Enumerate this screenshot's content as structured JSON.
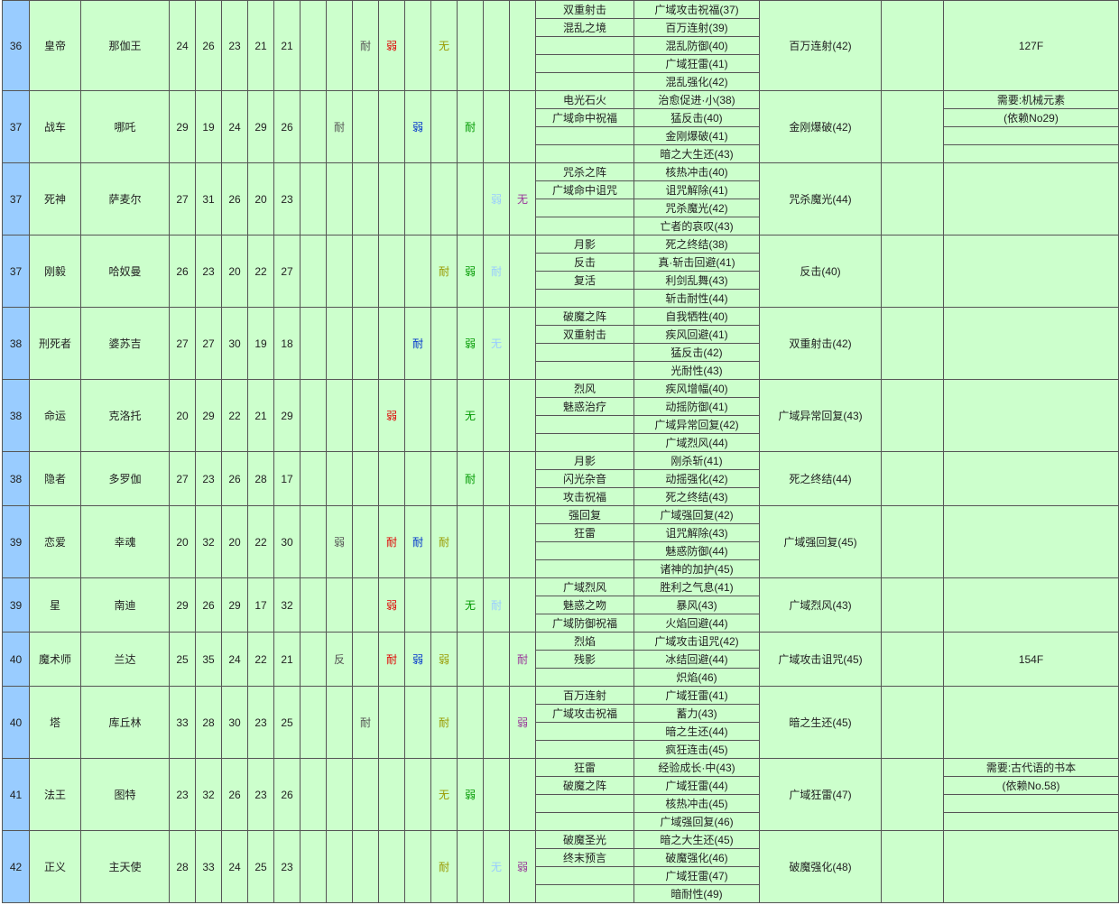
{
  "table": {
    "rows": [
      {
        "level": 36,
        "arcana": "皇帝",
        "name": "那伽王",
        "stats": [
          24,
          26,
          23,
          21,
          21
        ],
        "affinities": [
          null,
          null,
          "耐",
          "弱",
          null,
          "无",
          null,
          null,
          null
        ],
        "skills_a": [
          "双重射击",
          "混乱之境",
          null,
          null,
          null
        ],
        "skills_b": [
          "广域攻击祝福(37)",
          "百万连射(39)",
          "混乱防御(40)",
          "广域狂雷(41)",
          "混乱强化(42)"
        ],
        "cross": "百万连射(42)",
        "note": "127F"
      },
      {
        "level": 37,
        "arcana": "战车",
        "name": "哪吒",
        "stats": [
          29,
          19,
          24,
          29,
          26
        ],
        "affinities": [
          null,
          "耐",
          null,
          null,
          "弱",
          null,
          "耐",
          null,
          null
        ],
        "skills_a": [
          "电光石火",
          "广域命中祝福",
          null,
          null
        ],
        "skills_b": [
          "治愈促进·小(38)",
          "猛反击(40)",
          "金刚爆破(41)",
          "暗之大生还(43)"
        ],
        "cross": "金刚爆破(42)",
        "note": [
          "需要:机械元素",
          "(依赖No29)",
          null,
          null
        ]
      },
      {
        "level": 37,
        "arcana": "死神",
        "name": "萨麦尔",
        "stats": [
          27,
          31,
          26,
          20,
          23
        ],
        "affinities": [
          null,
          null,
          null,
          null,
          null,
          null,
          null,
          "弱",
          "无"
        ],
        "skills_a": [
          "咒杀之阵",
          "广域命中诅咒",
          null,
          null
        ],
        "skills_b": [
          "核热冲击(40)",
          "诅咒解除(41)",
          "咒杀魔光(42)",
          "亡者的哀叹(43)"
        ],
        "cross": "咒杀魔光(44)",
        "note": null
      },
      {
        "level": 37,
        "arcana": "刚毅",
        "name": "哈奴曼",
        "stats": [
          26,
          23,
          20,
          22,
          27
        ],
        "affinities": [
          null,
          null,
          null,
          null,
          null,
          "耐",
          "弱",
          "耐",
          null
        ],
        "skills_a": [
          "月影",
          "反击",
          "复活",
          null
        ],
        "skills_b": [
          "死之终结(38)",
          "真·斩击回避(41)",
          "利剑乱舞(43)",
          "斩击耐性(44)"
        ],
        "cross": "反击(40)",
        "note": null
      },
      {
        "level": 38,
        "arcana": "刑死者",
        "name": "婆苏吉",
        "stats": [
          27,
          27,
          30,
          19,
          18
        ],
        "affinities": [
          null,
          null,
          null,
          null,
          "耐",
          null,
          "弱",
          "无",
          null
        ],
        "skills_a": [
          "破魔之阵",
          "双重射击",
          null,
          null
        ],
        "skills_b": [
          "自我牺牲(40)",
          "疾风回避(41)",
          "猛反击(42)",
          "光耐性(43)"
        ],
        "cross": "双重射击(42)",
        "note": null
      },
      {
        "level": 38,
        "arcana": "命运",
        "name": "克洛托",
        "stats": [
          20,
          29,
          22,
          21,
          29
        ],
        "affinities": [
          null,
          null,
          null,
          "弱",
          null,
          null,
          "无",
          null,
          null
        ],
        "skills_a": [
          "烈风",
          "魅惑治疗",
          null,
          null
        ],
        "skills_b": [
          "疾风增幅(40)",
          "动摇防御(41)",
          "广域异常回复(42)",
          "广域烈风(44)"
        ],
        "cross": "广域异常回复(43)",
        "note": null
      },
      {
        "level": 38,
        "arcana": "隐者",
        "name": "多罗伽",
        "stats": [
          27,
          23,
          26,
          28,
          17
        ],
        "affinities": [
          null,
          null,
          null,
          null,
          null,
          null,
          "耐",
          null,
          null
        ],
        "skills_a": [
          "月影",
          "闪光杂音",
          "攻击祝福"
        ],
        "skills_b": [
          "刚杀斩(41)",
          "动摇强化(42)",
          "死之终结(43)"
        ],
        "cross": "死之终结(44)",
        "note": null
      },
      {
        "level": 39,
        "arcana": "恋爱",
        "name": "幸魂",
        "stats": [
          20,
          32,
          20,
          22,
          30
        ],
        "affinities": [
          null,
          "弱",
          null,
          "耐",
          "耐",
          "耐",
          null,
          null,
          null
        ],
        "skills_a": [
          "强回复",
          "狂雷",
          null,
          null
        ],
        "skills_b": [
          "广域强回复(42)",
          "诅咒解除(43)",
          "魅惑防御(44)",
          "诸神的加护(45)"
        ],
        "cross": "广域强回复(45)",
        "note": null
      },
      {
        "level": 39,
        "arcana": "星",
        "name": "南迪",
        "stats": [
          29,
          26,
          29,
          17,
          32
        ],
        "affinities": [
          null,
          null,
          null,
          "弱",
          null,
          null,
          "无",
          "耐",
          null
        ],
        "skills_a": [
          "广域烈风",
          "魅惑之吻",
          "广域防御祝福"
        ],
        "skills_b": [
          "胜利之气息(41)",
          "暴风(43)",
          "火焰回避(44)"
        ],
        "cross": "广域烈风(43)",
        "note": null
      },
      {
        "level": 40,
        "arcana": "魔术师",
        "name": "兰达",
        "stats": [
          25,
          35,
          24,
          22,
          21
        ],
        "affinities": [
          null,
          "反",
          null,
          "耐",
          "弱",
          "弱",
          null,
          null,
          "耐"
        ],
        "skills_a": [
          "烈焰",
          "残影",
          null
        ],
        "skills_b": [
          "广域攻击诅咒(42)",
          "冰结回避(44)",
          "炽焰(46)"
        ],
        "cross": "广域攻击诅咒(45)",
        "note": "154F"
      },
      {
        "level": 40,
        "arcana": "塔",
        "name": "库丘林",
        "stats": [
          33,
          28,
          30,
          23,
          25
        ],
        "affinities": [
          null,
          null,
          "耐",
          null,
          null,
          "耐",
          null,
          null,
          "弱"
        ],
        "skills_a": [
          "百万连射",
          "广域攻击祝福",
          null,
          null
        ],
        "skills_b": [
          "广域狂雷(41)",
          "蓄力(43)",
          "暗之生还(44)",
          "疯狂连击(45)"
        ],
        "cross": "暗之生还(45)",
        "note": null
      },
      {
        "level": 41,
        "arcana": "法王",
        "name": "图特",
        "stats": [
          23,
          32,
          26,
          23,
          26
        ],
        "affinities": [
          null,
          null,
          null,
          null,
          null,
          "无",
          "弱",
          null,
          null
        ],
        "skills_a": [
          "狂雷",
          "破魔之阵",
          null,
          null
        ],
        "skills_b": [
          "经验成长·中(43)",
          "广域狂雷(44)",
          "核热冲击(45)",
          "广域强回复(46)"
        ],
        "cross": "广域狂雷(47)",
        "note": [
          "需要:古代语的书本",
          "(依赖No.58)",
          null,
          null
        ]
      },
      {
        "level": 42,
        "arcana": "正义",
        "name": "主天使",
        "stats": [
          28,
          33,
          24,
          25,
          23
        ],
        "affinities": [
          null,
          null,
          null,
          null,
          null,
          "耐",
          null,
          "无",
          "弱"
        ],
        "skills_a": [
          "破魔圣光",
          "终末预言",
          null,
          null
        ],
        "skills_b": [
          "暗之大生还(45)",
          "破魔强化(46)",
          "广域狂雷(47)",
          "暗耐性(49)"
        ],
        "cross": "破魔强化(48)",
        "note": null
      }
    ]
  }
}
